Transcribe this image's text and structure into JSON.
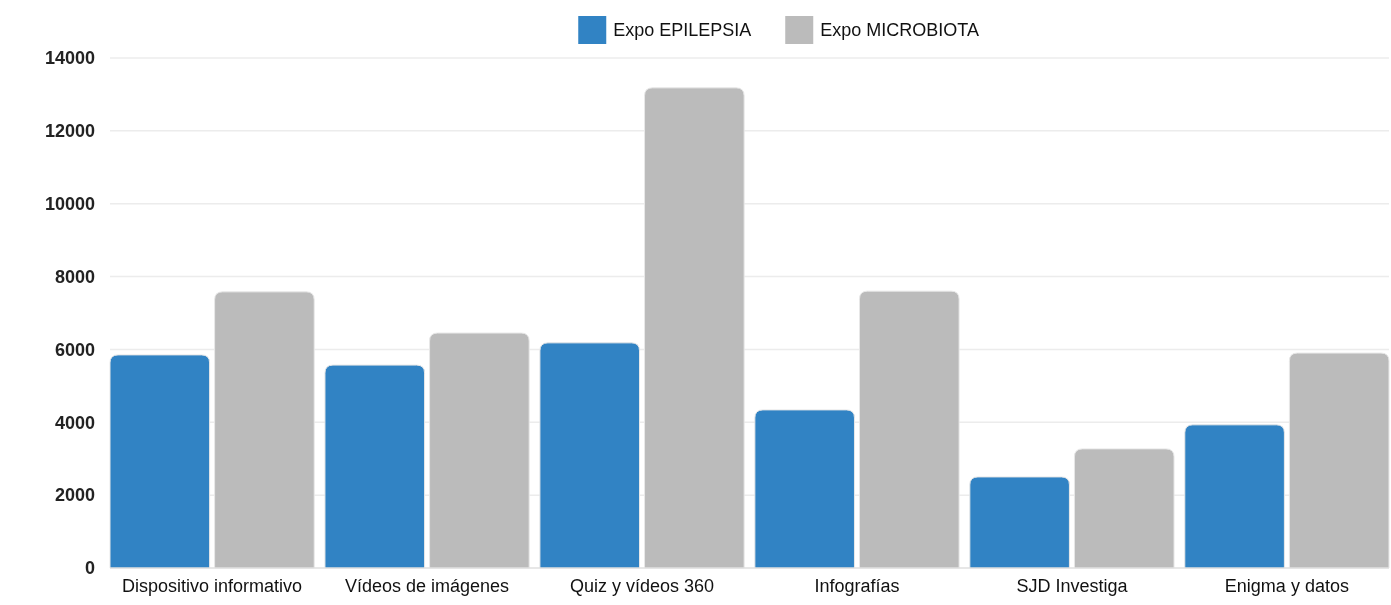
{
  "chart_data": {
    "type": "bar",
    "categories": [
      "Dispositivo informativo",
      "Vídeos de imágenes",
      "Quiz y vídeos 360",
      "Infografías",
      "SJD Investiga",
      "Enigma y datos"
    ],
    "series": [
      {
        "name": "Expo EPILEPSIA",
        "color": "#3183c4",
        "values": [
          5850,
          5570,
          6180,
          4340,
          2500,
          3930
        ]
      },
      {
        "name": "Expo MICROBIOTA",
        "color": "#bbbbbb",
        "values": [
          7580,
          6450,
          13180,
          7600,
          3270,
          5900
        ]
      }
    ],
    "ylim": [
      0,
      14000
    ],
    "yticks": [
      0,
      2000,
      4000,
      6000,
      8000,
      10000,
      12000,
      14000
    ],
    "grid": "y",
    "legend": "top"
  }
}
